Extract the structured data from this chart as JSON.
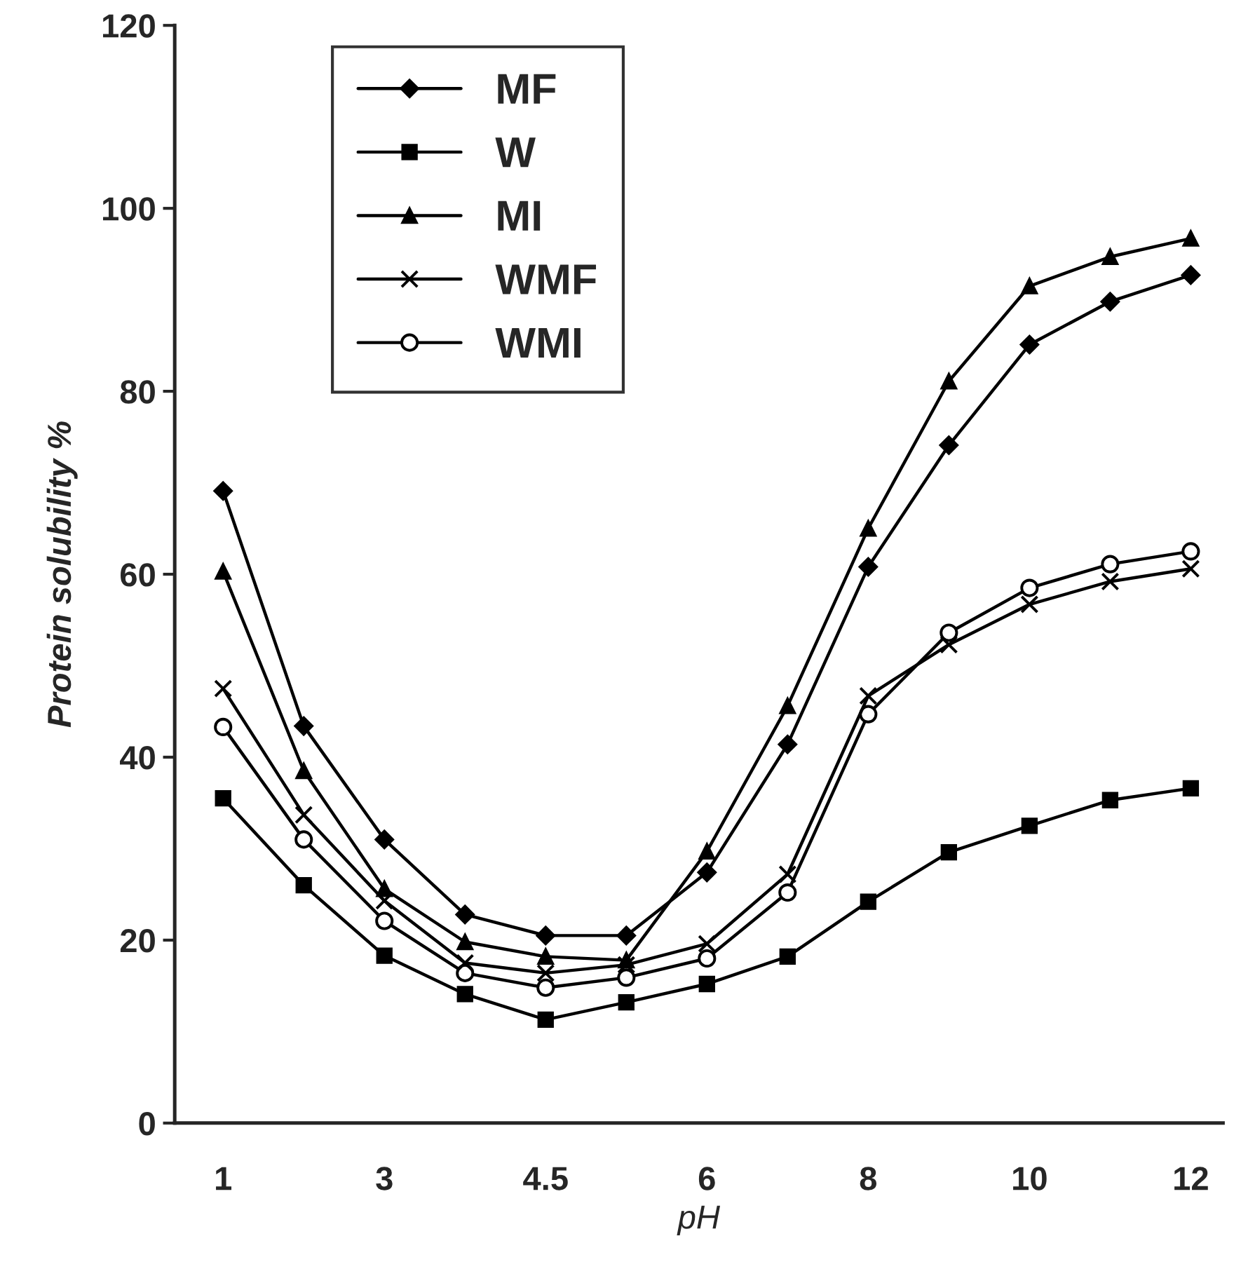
{
  "chart_data": {
    "type": "line",
    "xlabel": "pH",
    "ylabel": "Protein solubility %",
    "categories": [
      "1",
      null,
      "3",
      null,
      "4.5",
      null,
      "6",
      null,
      "8",
      null,
      "10",
      null,
      "12"
    ],
    "series": [
      {
        "name": "MF",
        "color": "#000000",
        "marker": "diamond",
        "values": [
          69.1,
          43.4,
          31.0,
          22.8,
          20.5,
          20.5,
          27.4,
          41.4,
          60.8,
          74.1,
          85.1,
          89.8,
          92.7
        ]
      },
      {
        "name": "W",
        "color": "#000000",
        "marker": "square",
        "values": [
          35.5,
          26.0,
          18.3,
          14.1,
          11.3,
          13.2,
          15.2,
          18.2,
          24.2,
          29.6,
          32.5,
          35.3,
          36.6
        ]
      },
      {
        "name": "MI",
        "color": "#000000",
        "marker": "triangle",
        "values": [
          60.3,
          38.5,
          25.6,
          19.8,
          18.2,
          17.8,
          29.7,
          45.6,
          65.0,
          81.1,
          91.5,
          94.7,
          96.7
        ]
      },
      {
        "name": "WMF",
        "color": "#000000",
        "marker": "cross",
        "values": [
          47.5,
          33.7,
          24.3,
          17.5,
          16.4,
          17.3,
          19.6,
          27.2,
          46.7,
          52.3,
          56.7,
          59.2,
          60.6
        ]
      },
      {
        "name": "WMI",
        "color": "#000000",
        "marker": "circle",
        "values": [
          43.3,
          31.0,
          22.1,
          16.4,
          14.8,
          15.9,
          18.0,
          25.2,
          44.7,
          53.6,
          58.5,
          61.1,
          62.5
        ]
      }
    ],
    "ylim": [
      0,
      120
    ],
    "yticks": [
      0,
      20,
      40,
      60,
      80,
      100,
      120
    ],
    "grid": false,
    "legend": "top left",
    "line_style": "solid"
  }
}
